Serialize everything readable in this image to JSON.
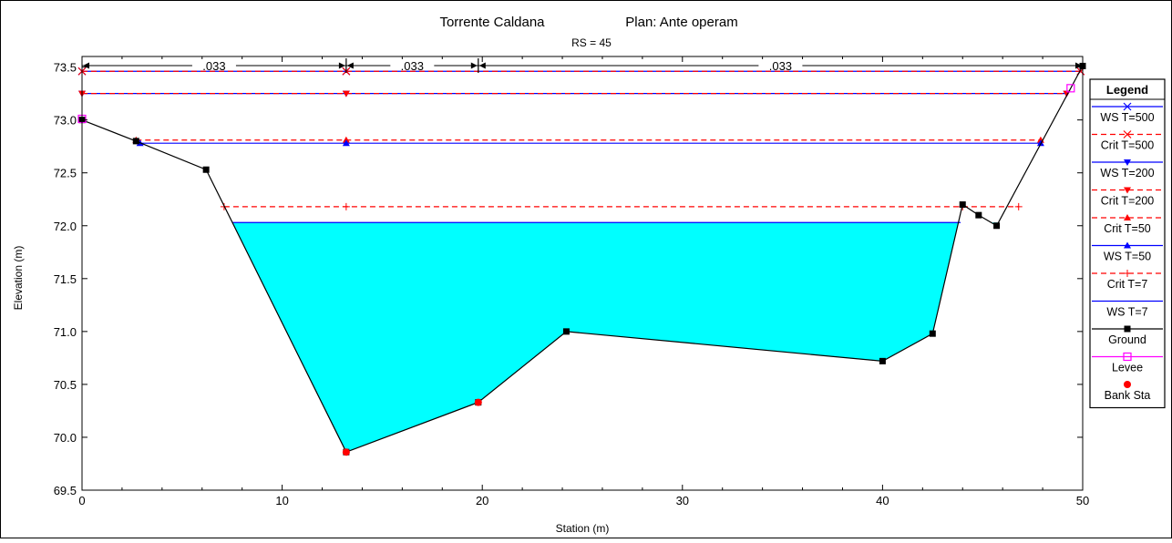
{
  "chart_data": {
    "type": "line",
    "title": "Torrente Caldana",
    "plan": "Plan: Ante operam",
    "subtitle": "RS = 45",
    "xlabel": "Station (m)",
    "ylabel": "Elevation (m)",
    "xlim": [
      0,
      50
    ],
    "ylim": [
      69.5,
      73.6
    ],
    "xticks": [
      0,
      10,
      20,
      30,
      40,
      50
    ],
    "yticks": [
      69.5,
      70.0,
      70.5,
      71.0,
      71.5,
      72.0,
      72.5,
      73.0,
      73.5
    ],
    "xtick_labels": [
      "0",
      "10",
      "20",
      "30",
      "40",
      "50"
    ],
    "ytick_labels": [
      "69.5",
      "70.0",
      "70.5",
      "71.0",
      "71.5",
      "72.0",
      "72.5",
      "73.0",
      "73.5"
    ],
    "grid": false,
    "manning_n": [
      {
        "label": ".033",
        "from": 0,
        "to": 13.2
      },
      {
        "label": ".033",
        "from": 13.2,
        "to": 19.8
      },
      {
        "label": ".033",
        "from": 19.8,
        "to": 50
      }
    ],
    "ground": {
      "x": [
        0,
        2.7,
        6.2,
        13.2,
        19.8,
        24.2,
        40.0,
        42.5,
        44.0,
        44.8,
        45.7,
        50.0
      ],
      "y": [
        73.0,
        72.8,
        72.53,
        69.86,
        70.33,
        71.0,
        70.72,
        70.98,
        72.2,
        72.1,
        72.0,
        73.51
      ]
    },
    "bank_stations": [
      {
        "x": 13.2,
        "y": 69.86
      },
      {
        "x": 19.8,
        "y": 70.33
      }
    ],
    "levees": [
      {
        "x": 0,
        "y": 73.01
      },
      {
        "x": 49.4,
        "y": 73.3
      }
    ],
    "water_surfaces": [
      {
        "name": "WS T=500",
        "elevation": 73.46,
        "x_from": 0,
        "x_to": 49.9,
        "color": "#0000ff",
        "dashed": false,
        "marker": "x",
        "markers_x": [
          0,
          13.2,
          49.9
        ]
      },
      {
        "name": "Crit T=500",
        "elevation": 73.46,
        "x_from": 0,
        "x_to": 49.9,
        "color": "#ff0000",
        "dashed": true,
        "marker": "x",
        "markers_x": [
          0,
          13.2,
          49.9
        ]
      },
      {
        "name": "WS T=200",
        "elevation": 73.25,
        "x_from": 0,
        "x_to": 49.2,
        "color": "#0000ff",
        "dashed": false,
        "marker": "tri-down",
        "markers_x": [
          0,
          13.2,
          49.2
        ]
      },
      {
        "name": "Crit T=200",
        "elevation": 73.25,
        "x_from": 0,
        "x_to": 49.2,
        "color": "#ff0000",
        "dashed": true,
        "marker": "tri-down",
        "markers_x": [
          0,
          13.2,
          49.2
        ]
      },
      {
        "name": "Crit T=50",
        "elevation": 72.81,
        "x_from": 2.7,
        "x_to": 47.9,
        "color": "#ff0000",
        "dashed": true,
        "marker": "tri-up",
        "markers_x": [
          2.7,
          13.2,
          47.9
        ]
      },
      {
        "name": "WS T=50",
        "elevation": 72.78,
        "x_from": 2.9,
        "x_to": 47.9,
        "color": "#0000ff",
        "dashed": false,
        "marker": "tri-up",
        "markers_x": [
          2.9,
          13.2,
          47.9
        ]
      },
      {
        "name": "Crit T=7",
        "elevation": 72.18,
        "x_from": 7.1,
        "x_to": 46.8,
        "color": "#ff0000",
        "dashed": true,
        "marker": "plus",
        "markers_x": [
          7.1,
          13.2,
          44.0,
          46.8
        ]
      },
      {
        "name": "WS T=7",
        "elevation": 72.03,
        "x_from": 7.5,
        "x_to": 43.9,
        "color": "#0000ff",
        "dashed": false,
        "marker": "none",
        "markers_x": []
      }
    ],
    "water_fill_color": "#00ffff",
    "legend": {
      "title": "Legend",
      "position": "right",
      "entries": [
        {
          "label": "WS T=500",
          "color": "#0000ff",
          "dashed": false,
          "marker": "x"
        },
        {
          "label": "Crit T=500",
          "color": "#ff0000",
          "dashed": true,
          "marker": "x"
        },
        {
          "label": "WS T=200",
          "color": "#0000ff",
          "dashed": false,
          "marker": "tri-down"
        },
        {
          "label": "Crit T=200",
          "color": "#ff0000",
          "dashed": true,
          "marker": "tri-down"
        },
        {
          "label": "Crit T=50",
          "color": "#ff0000",
          "dashed": true,
          "marker": "tri-up"
        },
        {
          "label": "WS T=50",
          "color": "#0000ff",
          "dashed": false,
          "marker": "tri-up"
        },
        {
          "label": "Crit T=7",
          "color": "#ff0000",
          "dashed": true,
          "marker": "plus"
        },
        {
          "label": "WS T=7",
          "color": "#0000ff",
          "dashed": false,
          "marker": "none"
        },
        {
          "label": "Ground",
          "color": "#000000",
          "dashed": false,
          "marker": "square"
        },
        {
          "label": "Levee",
          "color": "#ff00ff",
          "dashed": false,
          "marker": "open-square"
        },
        {
          "label": "Bank Sta",
          "color": "#ff0000",
          "dashed": false,
          "marker": "dot-only"
        }
      ]
    }
  }
}
